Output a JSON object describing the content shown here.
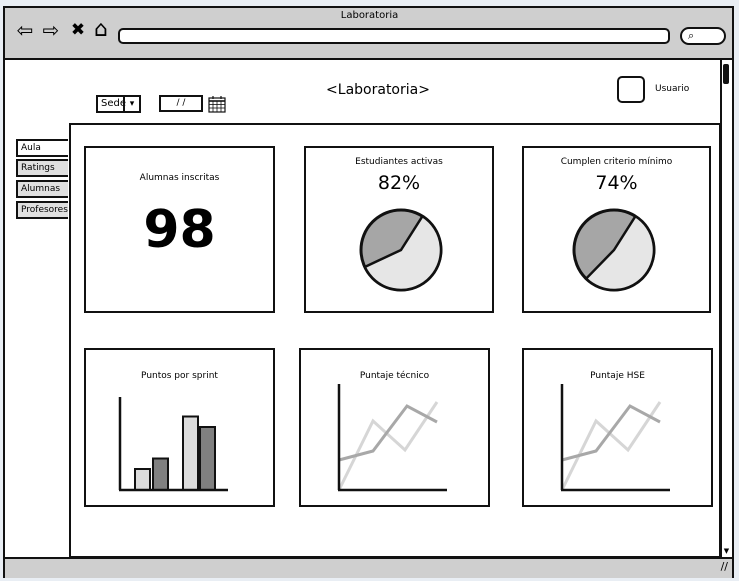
{
  "window": {
    "title": "Laboratoria"
  },
  "nav": {
    "back_icon": "back-arrow-icon",
    "forward_icon": "forward-arrow-icon",
    "close_icon": "close-icon",
    "home_icon": "home-icon",
    "search_icon": "search-icon",
    "back": "⇦",
    "forward": "⇨",
    "close": "✖",
    "home": "⌂",
    "search": "⌕"
  },
  "header": {
    "title": "<Laboratoria>",
    "sede_label": "Sede",
    "sede_arrow": "▾",
    "date_value": "/ /",
    "user_label": "Usuario"
  },
  "tabs": [
    {
      "label": "Aula",
      "active": true
    },
    {
      "label": "Ratings",
      "active": false
    },
    {
      "label": "Alumnas",
      "active": false
    },
    {
      "label": "Profesores",
      "active": false
    }
  ],
  "cards": {
    "enrolled": {
      "title": "Alumnas inscritas",
      "value": "98"
    },
    "active": {
      "title": "Estudiantes activas",
      "value": "82%",
      "fraction": 0.82
    },
    "criteria": {
      "title": "Cumplen criterio mínimo",
      "value": "74%",
      "fraction": 0.74
    },
    "sprint": {
      "title": "Puntos por sprint"
    },
    "technical": {
      "title": "Puntaje técnico"
    },
    "hse": {
      "title": "Puntaje HSE"
    }
  },
  "chart_data": [
    {
      "type": "bar",
      "title": "Puntos por sprint",
      "series": [
        {
          "values": [
            2,
            7
          ]
        },
        {
          "values": [
            3,
            6
          ]
        }
      ]
    },
    {
      "type": "line",
      "title": "Puntaje técnico",
      "series": [
        {
          "values": [
            1,
            2,
            5,
            3
          ]
        },
        {
          "values": [
            3,
            4,
            7,
            5
          ]
        }
      ]
    },
    {
      "type": "line",
      "title": "Puntaje HSE",
      "series": [
        {
          "values": [
            1,
            2,
            5,
            3
          ]
        },
        {
          "values": [
            3,
            4,
            7,
            5
          ]
        }
      ]
    }
  ],
  "colors": {
    "frame": "#cfcfcf",
    "pie_dark": "#a6a6a6",
    "pie_light": "#e6e6e6",
    "bar_light": "#dcdcdc",
    "bar_dark": "#808080",
    "line_light": "#d6d6d6",
    "line_dark": "#a8a8a8"
  }
}
